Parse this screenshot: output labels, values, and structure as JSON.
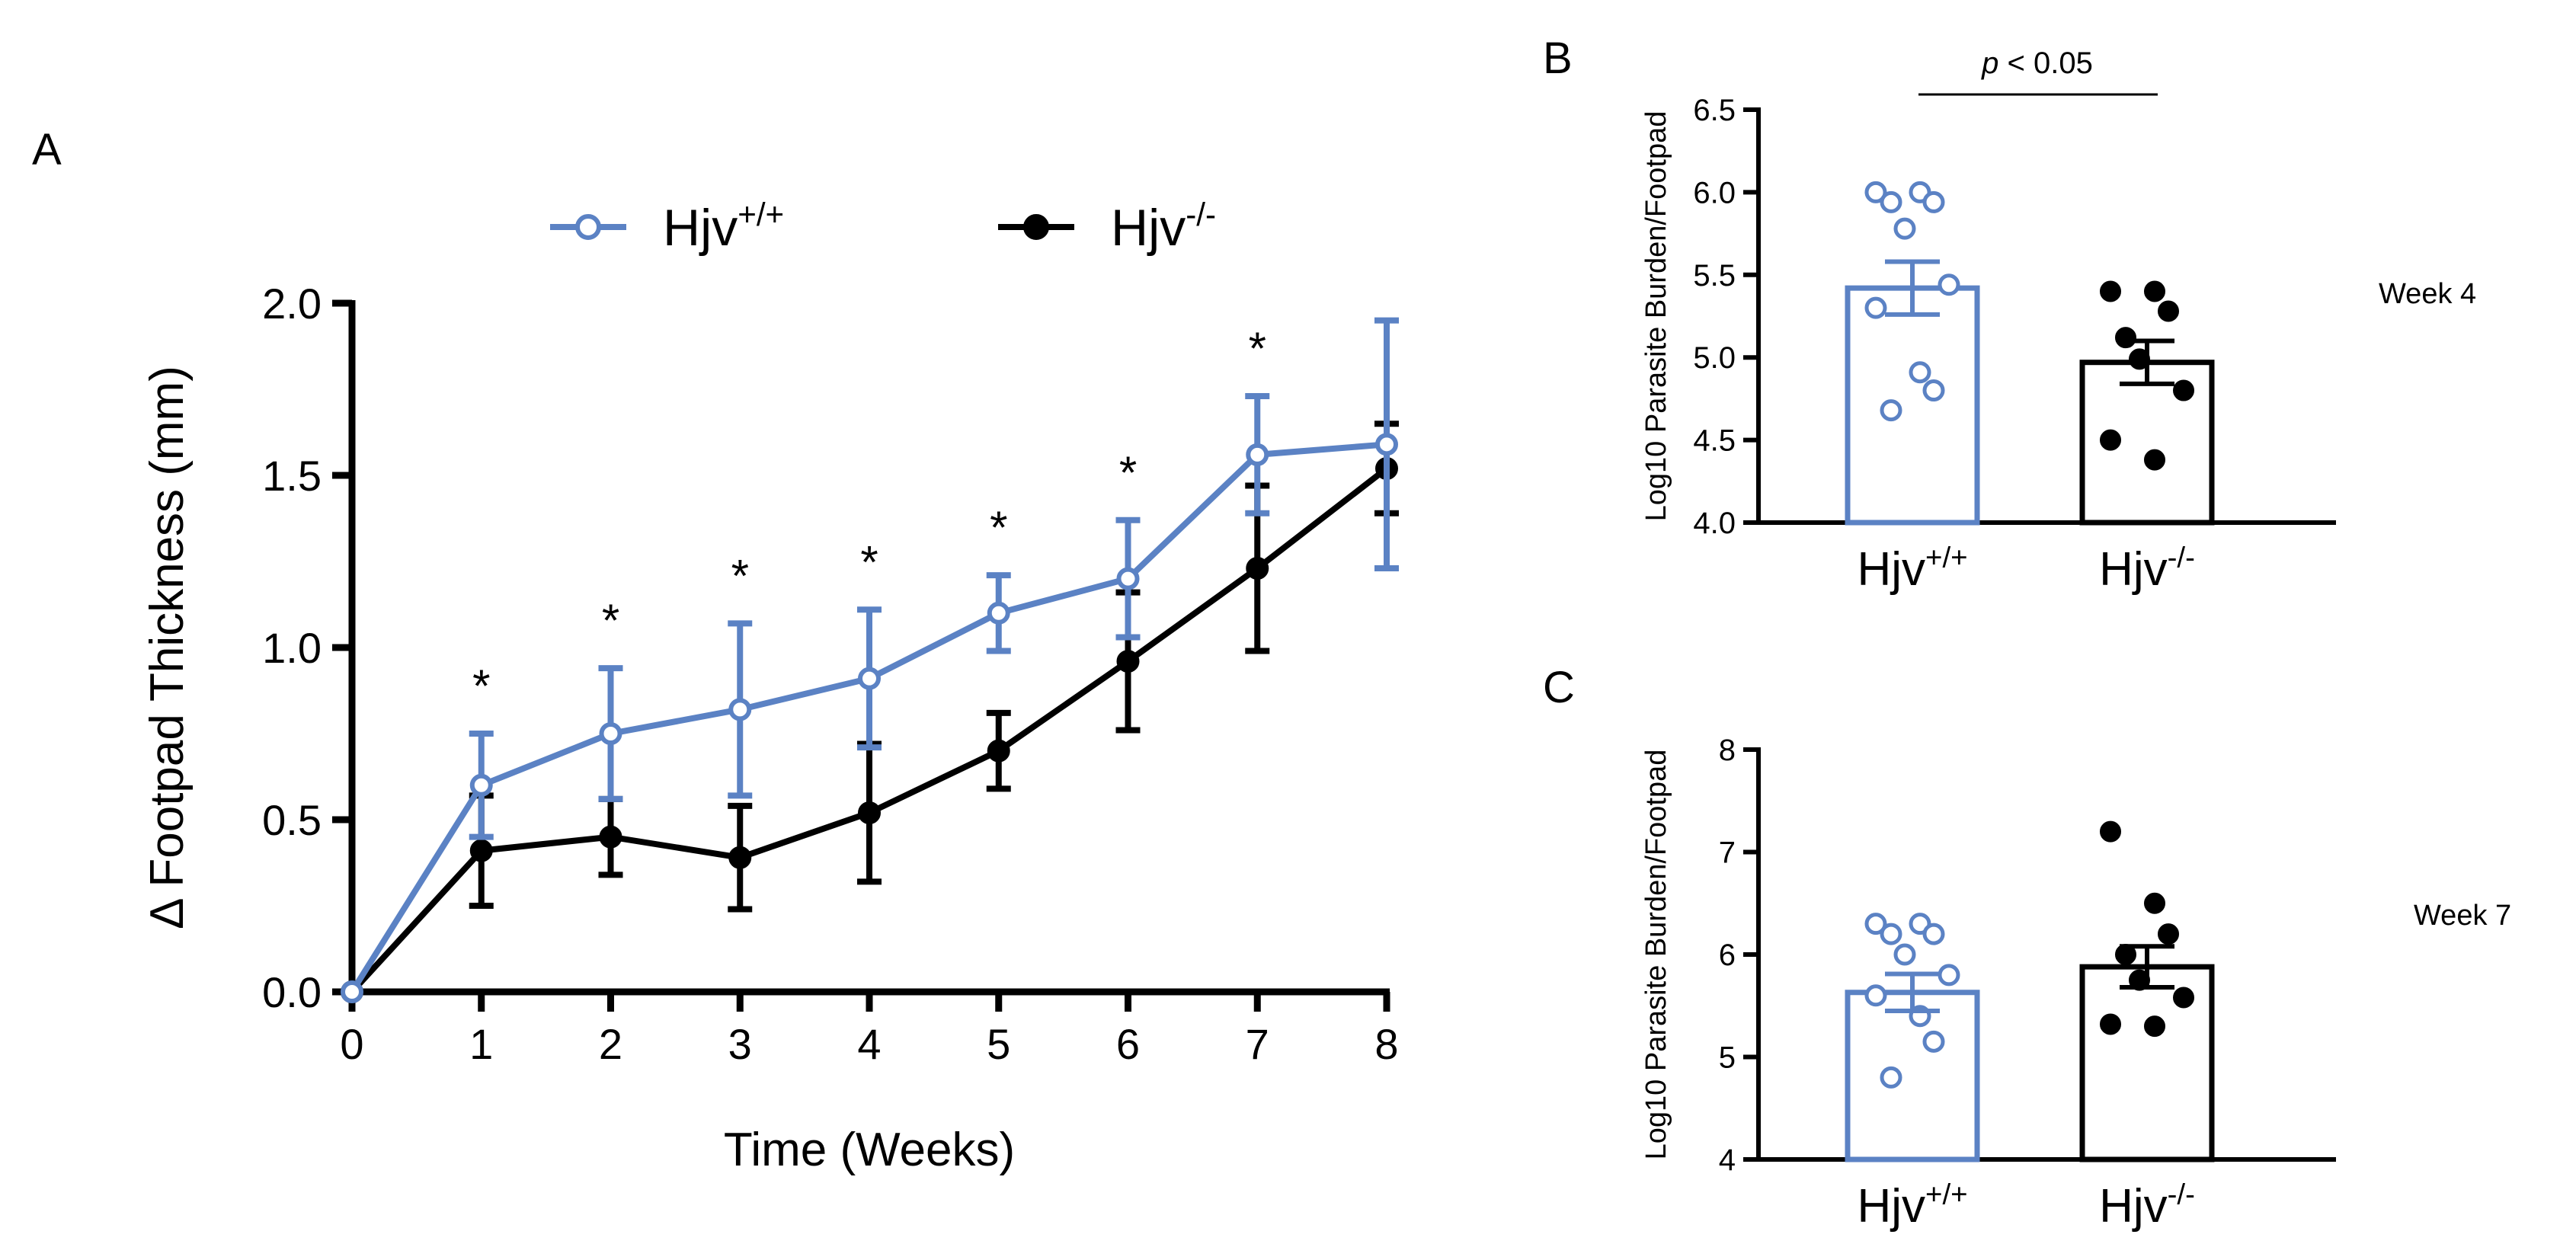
{
  "colors": {
    "wildtype": "#5b82c4",
    "knockout": "#000000",
    "axis": "#000000"
  },
  "panels": {
    "a": "A",
    "b": "B",
    "c": "C"
  },
  "chart_data": [
    {
      "panel": "A",
      "type": "line",
      "title": "",
      "xlabel": "Time (Weeks)",
      "ylabel": "Δ Footpad Thickness (mm)",
      "xlim": [
        0,
        8
      ],
      "ylim": [
        0,
        2
      ],
      "xticks": [
        0,
        1,
        2,
        3,
        4,
        5,
        6,
        7,
        8
      ],
      "xtick_labels": [
        "0",
        "1",
        "2",
        "3",
        "4",
        "5",
        "6",
        "7",
        "8"
      ],
      "yticks": [
        0,
        0.5,
        1,
        1.5,
        2
      ],
      "ytick_labels": [
        "0.0",
        "0.5",
        "1.0",
        "1.5",
        "2.0"
      ],
      "legend": {
        "position": "top"
      },
      "x": [
        0,
        1,
        2,
        3,
        4,
        5,
        6,
        7,
        8
      ],
      "series": [
        {
          "name": "Hjv",
          "sup": "+/+",
          "marker": "open-circle",
          "color": "#5b82c4",
          "values": [
            0,
            0.6,
            0.75,
            0.82,
            0.91,
            1.1,
            1.2,
            1.56,
            1.59
          ],
          "errors": [
            0,
            0.15,
            0.19,
            0.25,
            0.2,
            0.11,
            0.17,
            0.17,
            0.36
          ]
        },
        {
          "name": "Hjv",
          "sup": "-/-",
          "marker": "filled-circle",
          "color": "#000000",
          "values": [
            0,
            0.41,
            0.45,
            0.39,
            0.52,
            0.7,
            0.96,
            1.23,
            1.52
          ],
          "errors": [
            0,
            0.16,
            0.11,
            0.15,
            0.2,
            0.11,
            0.2,
            0.24,
            0.13
          ]
        }
      ],
      "annotations": [
        {
          "x": 1,
          "text": "*"
        },
        {
          "x": 2,
          "text": "*"
        },
        {
          "x": 3,
          "text": "*"
        },
        {
          "x": 4,
          "text": "*"
        },
        {
          "x": 5,
          "text": "*"
        },
        {
          "x": 6,
          "text": "*"
        },
        {
          "x": 7,
          "text": "*"
        }
      ]
    },
    {
      "panel": "B",
      "type": "bar",
      "title": "",
      "ylabel": "Log10 Parasite Burden/Footpad",
      "side_label": "Week 4",
      "ylim": [
        4.0,
        6.5
      ],
      "yticks": [
        4.0,
        4.5,
        5.0,
        5.5,
        6.0,
        6.5
      ],
      "ytick_labels": [
        "4.0",
        "4.5",
        "5.0",
        "5.5",
        "6.0",
        "6.5"
      ],
      "significance": {
        "italic": "p",
        "text": " < 0.05"
      },
      "categories": [
        {
          "name": "Hjv",
          "sup": "+/+",
          "color": "#5b82c4",
          "marker": "open",
          "mean": 5.42,
          "sem": 0.16,
          "points": [
            6.0,
            6.0,
            5.94,
            5.94,
            5.78,
            5.44,
            5.3,
            4.91,
            4.8,
            4.68
          ]
        },
        {
          "name": "Hjv",
          "sup": "-/-",
          "color": "#000000",
          "marker": "filled",
          "mean": 4.97,
          "sem": 0.13,
          "points": [
            5.4,
            5.4,
            5.28,
            5.12,
            4.99,
            4.8,
            4.5,
            4.38
          ]
        }
      ]
    },
    {
      "panel": "C",
      "type": "bar",
      "title": "",
      "ylabel": "Log10 Parasite Burden/Footpad",
      "side_label": "Week 7",
      "ylim": [
        4,
        8
      ],
      "yticks": [
        4,
        5,
        6,
        7,
        8
      ],
      "ytick_labels": [
        "4",
        "5",
        "6",
        "7",
        "8"
      ],
      "categories": [
        {
          "name": "Hjv",
          "sup": "+/+",
          "color": "#5b82c4",
          "marker": "open",
          "mean": 5.63,
          "sem": 0.18,
          "points": [
            6.3,
            6.3,
            6.2,
            6.2,
            6.0,
            5.8,
            5.6,
            5.4,
            5.15,
            4.8
          ]
        },
        {
          "name": "Hjv",
          "sup": "-/-",
          "color": "#000000",
          "marker": "filled",
          "mean": 5.88,
          "sem": 0.2,
          "points": [
            7.2,
            6.5,
            6.2,
            6.0,
            5.75,
            5.58,
            5.32,
            5.3
          ]
        }
      ]
    }
  ]
}
